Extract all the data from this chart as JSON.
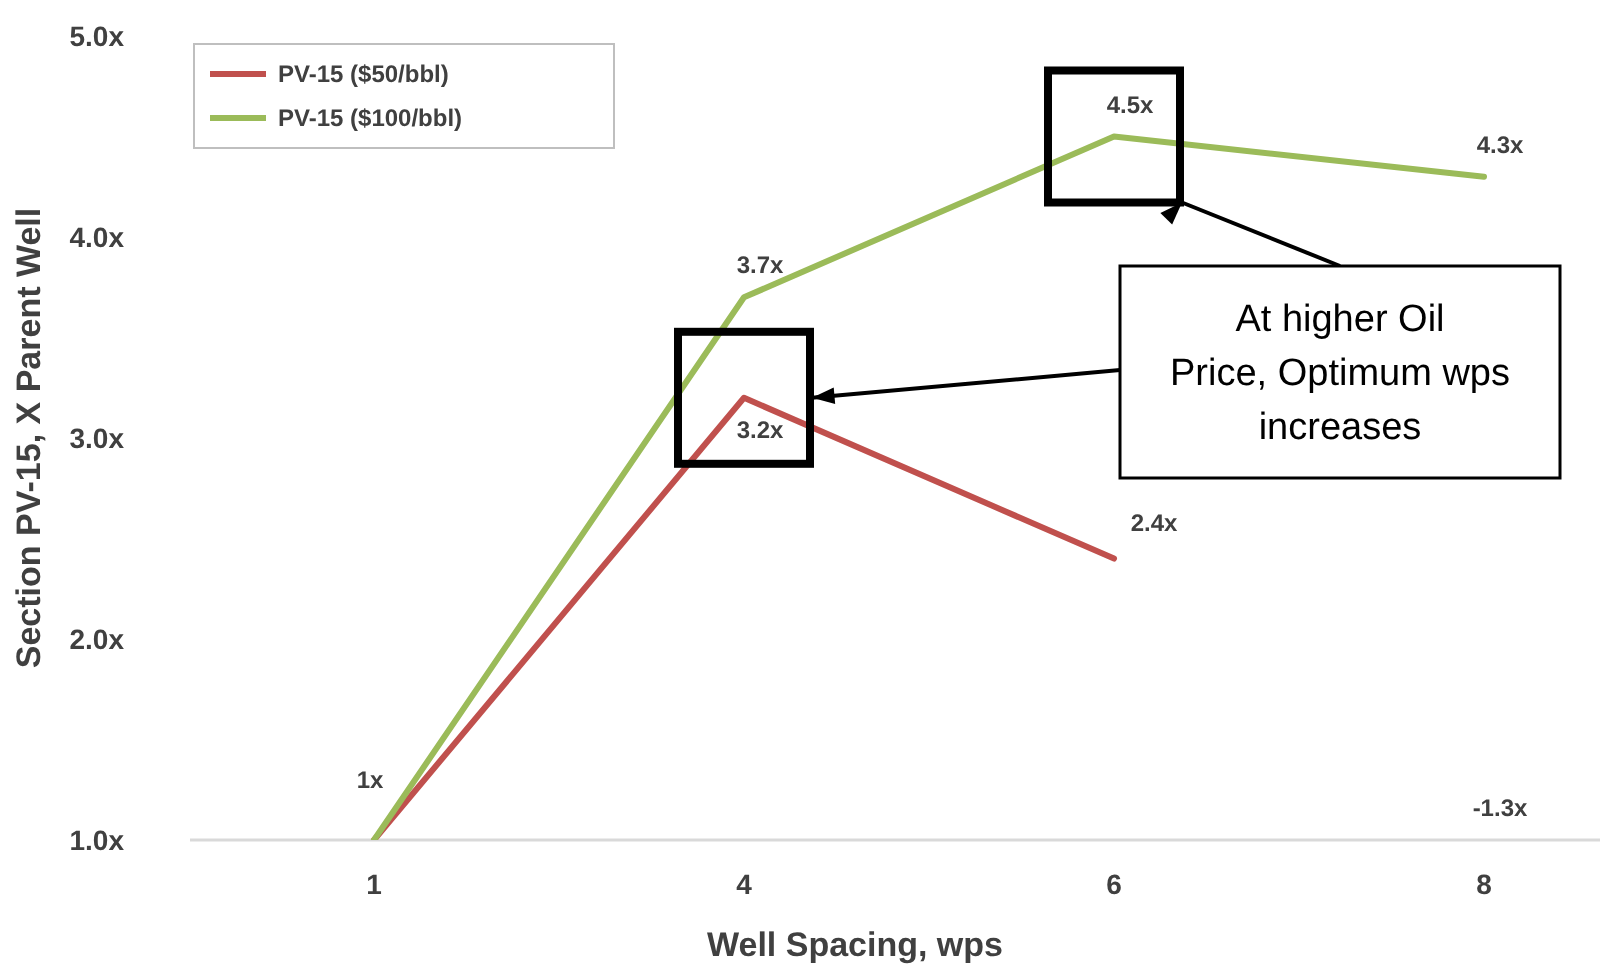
{
  "chart_data": {
    "type": "line",
    "xlabel": "Well Spacing, wps",
    "ylabel": "Section PV-15, X Parent Well",
    "categories": [
      "1",
      "4",
      "6",
      "8"
    ],
    "series": [
      {
        "name": "PV-15 ($50/bbl)",
        "color": "#c0504d",
        "values": [
          1,
          3.2,
          2.4,
          null
        ],
        "value_labels": [
          "1x",
          "3.2x",
          "2.4x",
          null
        ]
      },
      {
        "name": "PV-15 ($100/bbl)",
        "color": "#9bbb59",
        "values": [
          1,
          3.7,
          4.5,
          4.3
        ],
        "value_labels": [
          null,
          "3.7x",
          "4.5x",
          "4.3x"
        ]
      }
    ],
    "ylim": [
      1,
      5
    ],
    "yticks": [
      {
        "value": 1,
        "label": "1.0x"
      },
      {
        "value": 2,
        "label": "2.0x"
      },
      {
        "value": 3,
        "label": "3.0x"
      },
      {
        "value": 4,
        "label": "4.0x"
      },
      {
        "value": 5,
        "label": "5.0x"
      }
    ],
    "grid": false,
    "legend": "top left",
    "marker": "none",
    "line_style": "solid",
    "annotations": [
      "At higher Oil Price, Optimum wps increases",
      "-1.3x"
    ]
  }
}
